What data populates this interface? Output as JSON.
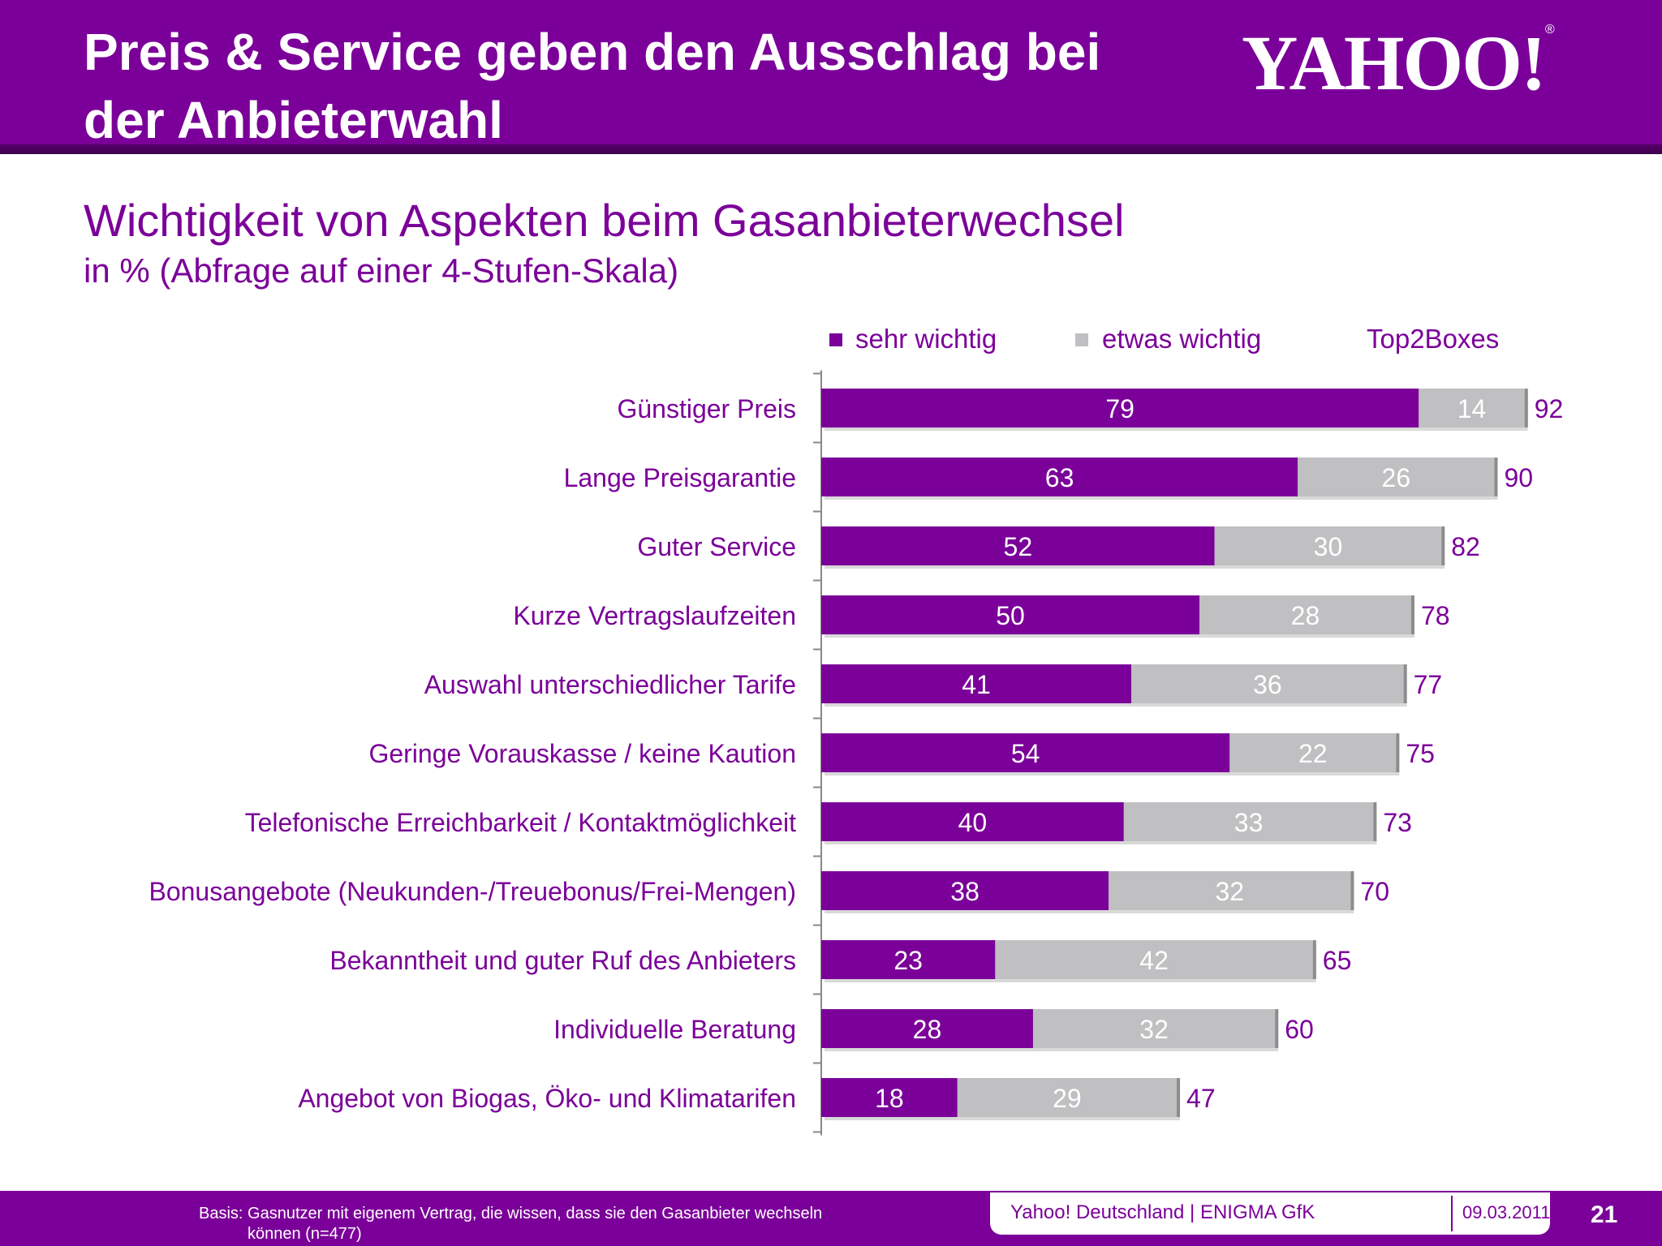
{
  "header": {
    "title_line1": "Preis & Service geben den Ausschlag bei",
    "title_line2": "der Anbieterwahl",
    "logo": "YAHOO!",
    "logo_mark": "®"
  },
  "colors": {
    "brand_purple": "#7b0099",
    "series_gray": "#c0bfc1"
  },
  "chart_data": {
    "type": "bar",
    "orientation": "horizontal",
    "stacked": true,
    "title": "Wichtigkeit von Aspekten beim Gasanbieterwechsel",
    "subtitle": "in % (Abfrage auf einer 4-Stufen-Skala)",
    "categories": [
      "Günstiger Preis",
      "Lange Preisgarantie",
      "Guter Service",
      "Kurze Vertragslaufzeiten",
      "Auswahl unterschiedlicher Tarife",
      "Geringe Vorauskasse / keine Kaution",
      "Telefonische Erreichbarkeit / Kontaktmöglichkeit",
      "Bonusangebote (Neukunden-/Treuebonus/Frei-Mengen)",
      "Bekanntheit und guter Ruf des Anbieters",
      "Individuelle Beratung",
      "Angebot von Biogas, Öko- und Klimatarifen"
    ],
    "series": [
      {
        "name": "sehr wichtig",
        "color": "#7b0099",
        "values": [
          79,
          63,
          52,
          50,
          41,
          54,
          40,
          38,
          23,
          28,
          18
        ]
      },
      {
        "name": "etwas wichtig",
        "color": "#c0bfc1",
        "values": [
          14,
          26,
          30,
          28,
          36,
          22,
          33,
          32,
          42,
          32,
          29
        ]
      }
    ],
    "totals_label": "Top2Boxes",
    "totals": [
      92,
      90,
      82,
      78,
      77,
      75,
      73,
      70,
      65,
      60,
      47
    ],
    "xlim": [
      0,
      100
    ],
    "grid": false,
    "legend_position": "top"
  },
  "footer": {
    "basis_line1": "Basis:  Gasnutzer mit eigenem Vertrag, die wissen, dass sie den Gasanbieter wechseln",
    "basis_line2": "können (n=477)",
    "source": "Yahoo! Deutschland | ENIGMA GfK",
    "date": "09.03.2011",
    "page": "21"
  }
}
